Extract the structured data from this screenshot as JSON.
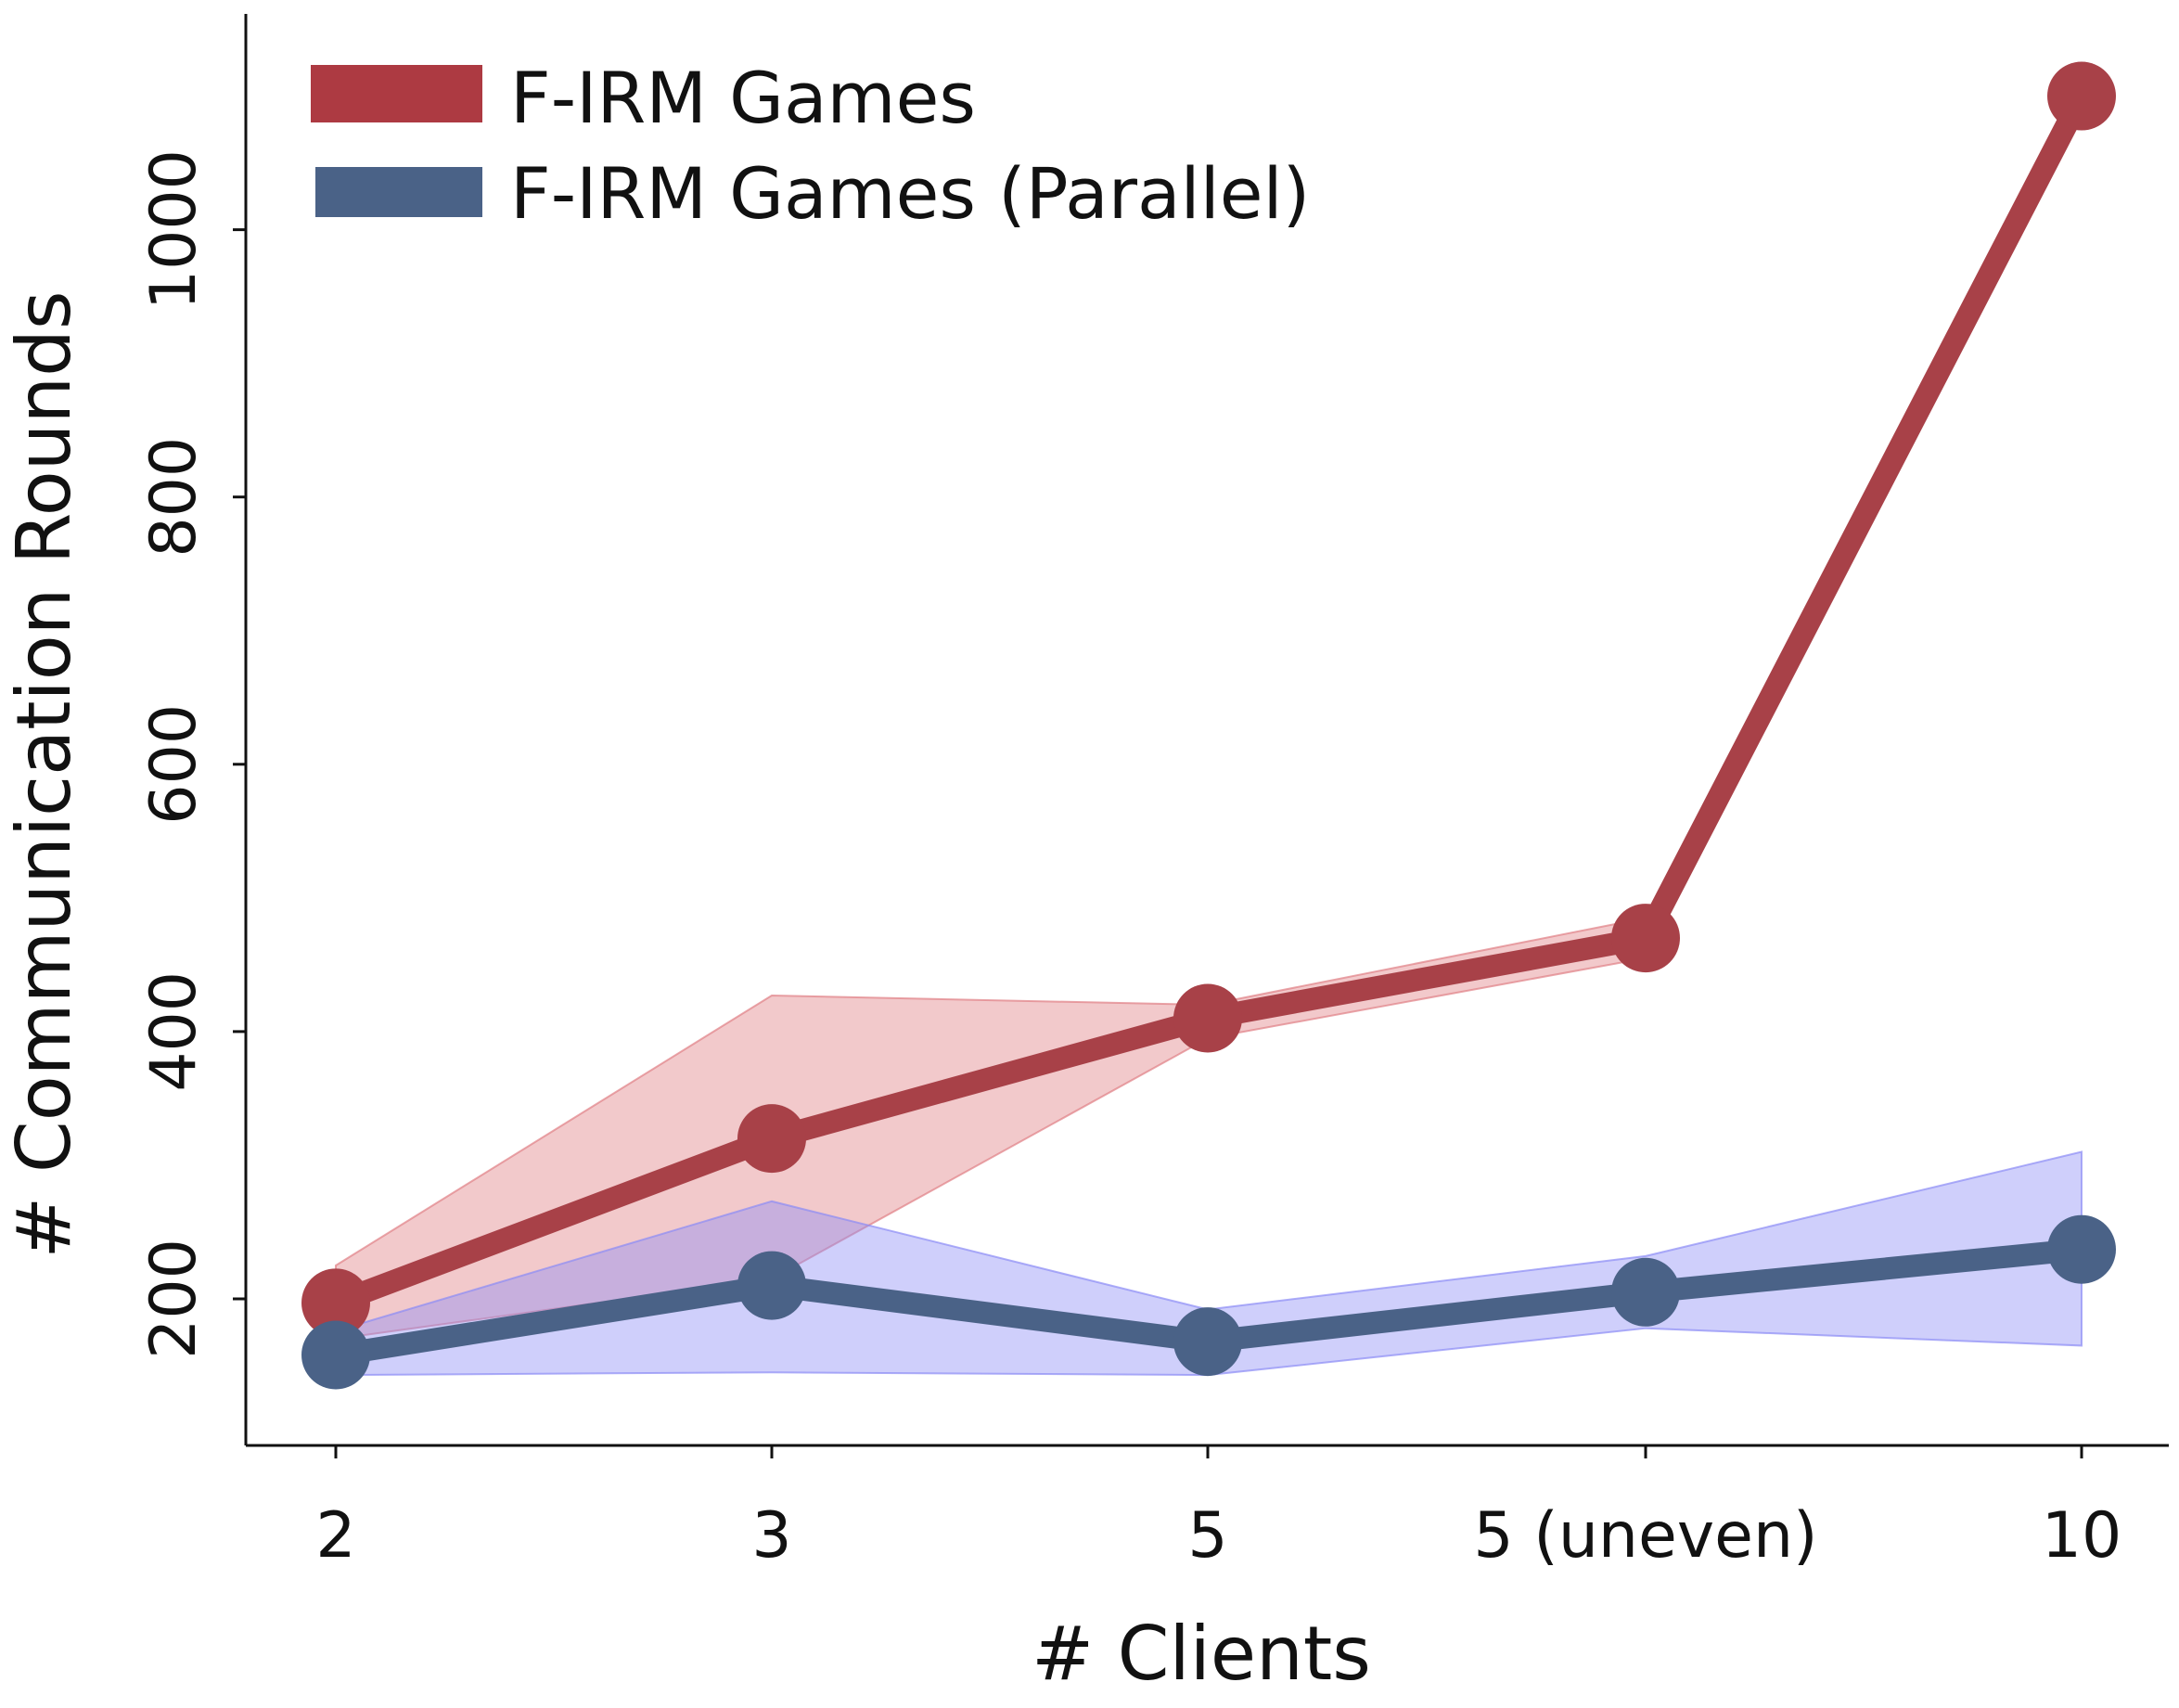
{
  "chart_data": {
    "type": "line",
    "title": "",
    "xlabel": "# Clients",
    "ylabel": "# Communication Rounds",
    "categories": [
      "2",
      "3",
      "5",
      "5 (uneven)",
      "10"
    ],
    "yticks": [
      200,
      400,
      600,
      800,
      1000
    ],
    "ylim": [
      90,
      1250
    ],
    "grid": false,
    "legend_position": "top-left",
    "series": [
      {
        "name": "F-IRM Games",
        "color": "#a84148",
        "band_color": "#e07f84",
        "values": [
          197,
          320,
          410,
          470,
          1100
        ],
        "lower": [
          170,
          215,
          395,
          455,
          1090
        ],
        "upper": [
          225,
          427,
          420,
          485,
          1110
        ]
      },
      {
        "name": "F-IRM Games (Parallel)",
        "color": "#4a6287",
        "band_color": "#8c8cf5",
        "values": [
          158,
          210,
          168,
          205,
          237
        ],
        "lower": [
          143,
          145,
          143,
          178,
          165
        ],
        "upper": [
          176,
          273,
          192,
          232,
          310
        ]
      }
    ]
  }
}
